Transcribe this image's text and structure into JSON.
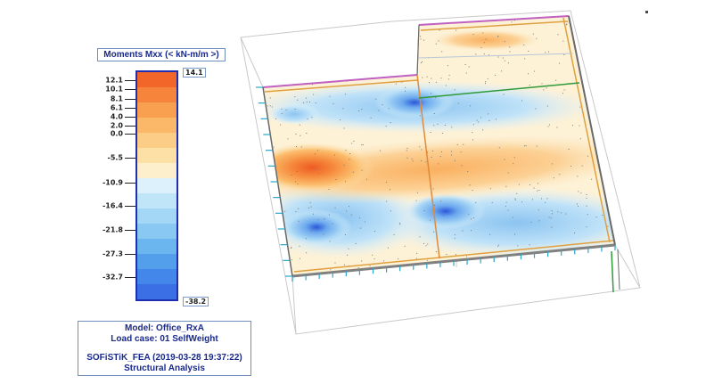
{
  "legend": {
    "title": "Moments Mxx (< kN-m/m >)",
    "max_label": "14.1",
    "min_label": "-38.2",
    "ticks": [
      "12.1",
      "10.1",
      "8.1",
      "6.1",
      "4.0",
      "2.0",
      "0.0",
      "-5.5",
      "-10.9",
      "-16.4",
      "-21.8",
      "-27.3",
      "-32.7"
    ],
    "band_colors": [
      "#f2662a",
      "#f6843a",
      "#f99f50",
      "#fbb868",
      "#fccd86",
      "#fde0a6",
      "#feefcc",
      "#dcf1fb",
      "#c0e5f8",
      "#a4d7f5",
      "#88c8f2",
      "#6cb6ef",
      "#539fec",
      "#4387ea",
      "#3a6fe6"
    ]
  },
  "info": {
    "model": "Model: Office_RxA",
    "load_case": "Load case: 01 SelfWeight",
    "software": "SOFiSTiK_FEA (2019-03-28 19:37:22)",
    "analysis": "Structural Analysis"
  }
}
